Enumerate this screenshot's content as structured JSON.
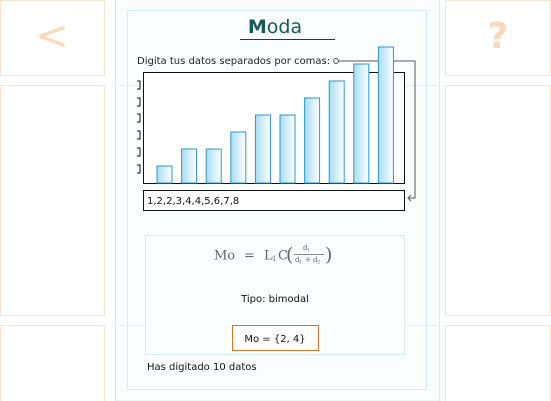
{
  "nav": {
    "back": "<",
    "help": "?"
  },
  "header": {
    "title_initial": "M",
    "title_rest": "oda"
  },
  "prompt": "Digita tus datos separados por comas:",
  "chart": {
    "values": [
      1,
      2,
      2,
      3,
      4,
      4,
      5,
      6,
      7,
      8
    ]
  },
  "input": "1,2,2,3,4,4,5,6,7,8",
  "formula": {
    "lhs": "Mo",
    "eq": "=",
    "L": "L",
    "L_sub": "1",
    "C": "C",
    "open": "(",
    "close": ")",
    "num": "d",
    "num_sub": "1",
    "den1": "d",
    "den1_sub": "1",
    "plus": "+",
    "den2": "d",
    "den2_sub": "2"
  },
  "type_label": "Tipo: bimodal",
  "result": "Mo = {2, 4}",
  "count": "Has digitado 10 datos"
}
